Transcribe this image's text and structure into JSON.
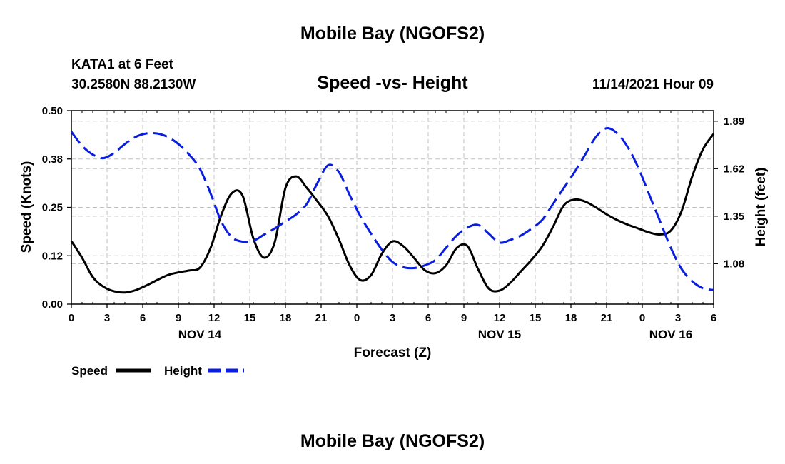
{
  "page": {
    "title_top": "Mobile Bay (NGOFS2)",
    "title_bottom": "Mobile Bay (NGOFS2)"
  },
  "header": {
    "station": "KATA1 at 6 Feet",
    "coords": "30.2580N  88.2130W",
    "subtitle": "Speed -vs- Height",
    "datetime": "11/14/2021 Hour 09"
  },
  "chart_data": {
    "type": "line",
    "xlabel": "Forecast (Z)",
    "ylabel_left": "Speed (Knots)",
    "ylabel_right": "Height (feet)",
    "x_hours": [
      0,
      60
    ],
    "x_tick_labels": [
      "0",
      "3",
      "6",
      "9",
      "12",
      "15",
      "18",
      "21",
      "0",
      "3",
      "6",
      "9",
      "12",
      "15",
      "18",
      "21",
      "0",
      "3",
      "6"
    ],
    "date_labels": [
      {
        "label": "NOV 14",
        "hour": 12
      },
      {
        "label": "NOV 15",
        "hour": 40
      },
      {
        "label": "NOV 16",
        "hour": 56
      }
    ],
    "y_left": {
      "range": [
        0,
        0.5
      ],
      "ticks": [
        "0.00",
        "0.12",
        "0.25",
        "0.38",
        "0.50"
      ],
      "tick_values": [
        0,
        0.125,
        0.25,
        0.375,
        0.5
      ]
    },
    "y_right": {
      "range": [
        0.85,
        1.95
      ],
      "ticks": [
        "1.08",
        "1.35",
        "1.62",
        "1.89"
      ],
      "tick_values": [
        1.08,
        1.35,
        1.62,
        1.89
      ]
    },
    "grid": true,
    "legend_position": "bottom-left",
    "series": [
      {
        "name": "Speed",
        "axis": "left",
        "color": "#000000",
        "style": "solid",
        "points": [
          [
            0,
            0.163
          ],
          [
            1,
            0.12
          ],
          [
            2,
            0.07
          ],
          [
            3,
            0.045
          ],
          [
            4,
            0.033
          ],
          [
            5,
            0.03
          ],
          [
            6,
            0.036
          ],
          [
            7,
            0.048
          ],
          [
            8,
            0.062
          ],
          [
            9,
            0.075
          ],
          [
            10,
            0.082
          ],
          [
            11,
            0.087
          ],
          [
            12,
            0.094
          ],
          [
            13,
            0.145
          ],
          [
            14,
            0.23
          ],
          [
            15,
            0.287
          ],
          [
            16,
            0.28
          ],
          [
            17,
            0.17
          ],
          [
            18,
            0.12
          ],
          [
            19,
            0.16
          ],
          [
            20,
            0.3
          ],
          [
            21,
            0.33
          ],
          [
            22,
            0.3
          ],
          [
            23,
            0.265
          ],
          [
            24,
            0.226
          ],
          [
            25,
            0.167
          ],
          [
            26,
            0.1
          ],
          [
            27,
            0.062
          ],
          [
            28,
            0.075
          ],
          [
            29,
            0.13
          ],
          [
            30,
            0.162
          ],
          [
            31,
            0.15
          ],
          [
            32,
            0.12
          ],
          [
            33,
            0.088
          ],
          [
            34,
            0.08
          ],
          [
            35,
            0.1
          ],
          [
            36,
            0.145
          ],
          [
            37,
            0.15
          ],
          [
            38,
            0.09
          ],
          [
            39,
            0.04
          ],
          [
            40,
            0.035
          ],
          [
            41,
            0.055
          ],
          [
            42,
            0.085
          ],
          [
            43,
            0.115
          ],
          [
            44,
            0.15
          ],
          [
            45,
            0.2
          ],
          [
            46,
            0.255
          ],
          [
            47,
            0.27
          ],
          [
            48,
            0.265
          ],
          [
            49,
            0.25
          ],
          [
            50,
            0.232
          ],
          [
            51,
            0.217
          ],
          [
            52,
            0.205
          ],
          [
            53,
            0.195
          ],
          [
            54,
            0.185
          ],
          [
            55,
            0.18
          ],
          [
            56,
            0.19
          ],
          [
            57,
            0.24
          ],
          [
            58,
            0.33
          ],
          [
            59,
            0.4
          ],
          [
            60,
            0.44
          ]
        ]
      },
      {
        "name": "Height",
        "axis": "right",
        "color": "#0a1ee0",
        "style": "dashed",
        "points": [
          [
            0,
            1.83
          ],
          [
            1,
            1.75
          ],
          [
            2,
            1.7
          ],
          [
            3,
            1.68
          ],
          [
            4,
            1.71
          ],
          [
            5,
            1.76
          ],
          [
            6,
            1.8
          ],
          [
            7,
            1.82
          ],
          [
            8,
            1.82
          ],
          [
            9,
            1.8
          ],
          [
            10,
            1.76
          ],
          [
            11,
            1.7
          ],
          [
            12,
            1.62
          ],
          [
            13,
            1.48
          ],
          [
            14,
            1.32
          ],
          [
            15,
            1.23
          ],
          [
            16,
            1.205
          ],
          [
            17,
            1.21
          ],
          [
            18,
            1.245
          ],
          [
            19,
            1.28
          ],
          [
            20,
            1.32
          ],
          [
            21,
            1.36
          ],
          [
            22,
            1.42
          ],
          [
            23,
            1.54
          ],
          [
            24,
            1.64
          ],
          [
            25,
            1.6
          ],
          [
            26,
            1.47
          ],
          [
            27,
            1.35
          ],
          [
            28,
            1.25
          ],
          [
            29,
            1.16
          ],
          [
            30,
            1.09
          ],
          [
            31,
            1.06
          ],
          [
            32,
            1.055
          ],
          [
            33,
            1.07
          ],
          [
            34,
            1.1
          ],
          [
            35,
            1.17
          ],
          [
            36,
            1.24
          ],
          [
            37,
            1.285
          ],
          [
            38,
            1.3
          ],
          [
            39,
            1.25
          ],
          [
            40,
            1.2
          ],
          [
            41,
            1.215
          ],
          [
            42,
            1.24
          ],
          [
            43,
            1.28
          ],
          [
            44,
            1.33
          ],
          [
            45,
            1.42
          ],
          [
            46,
            1.51
          ],
          [
            47,
            1.6
          ],
          [
            48,
            1.7
          ],
          [
            49,
            1.8
          ],
          [
            50,
            1.85
          ],
          [
            51,
            1.82
          ],
          [
            52,
            1.74
          ],
          [
            53,
            1.62
          ],
          [
            54,
            1.47
          ],
          [
            55,
            1.32
          ],
          [
            56,
            1.17
          ],
          [
            57,
            1.05
          ],
          [
            58,
            0.98
          ],
          [
            59,
            0.94
          ],
          [
            60,
            0.93
          ]
        ]
      }
    ]
  }
}
